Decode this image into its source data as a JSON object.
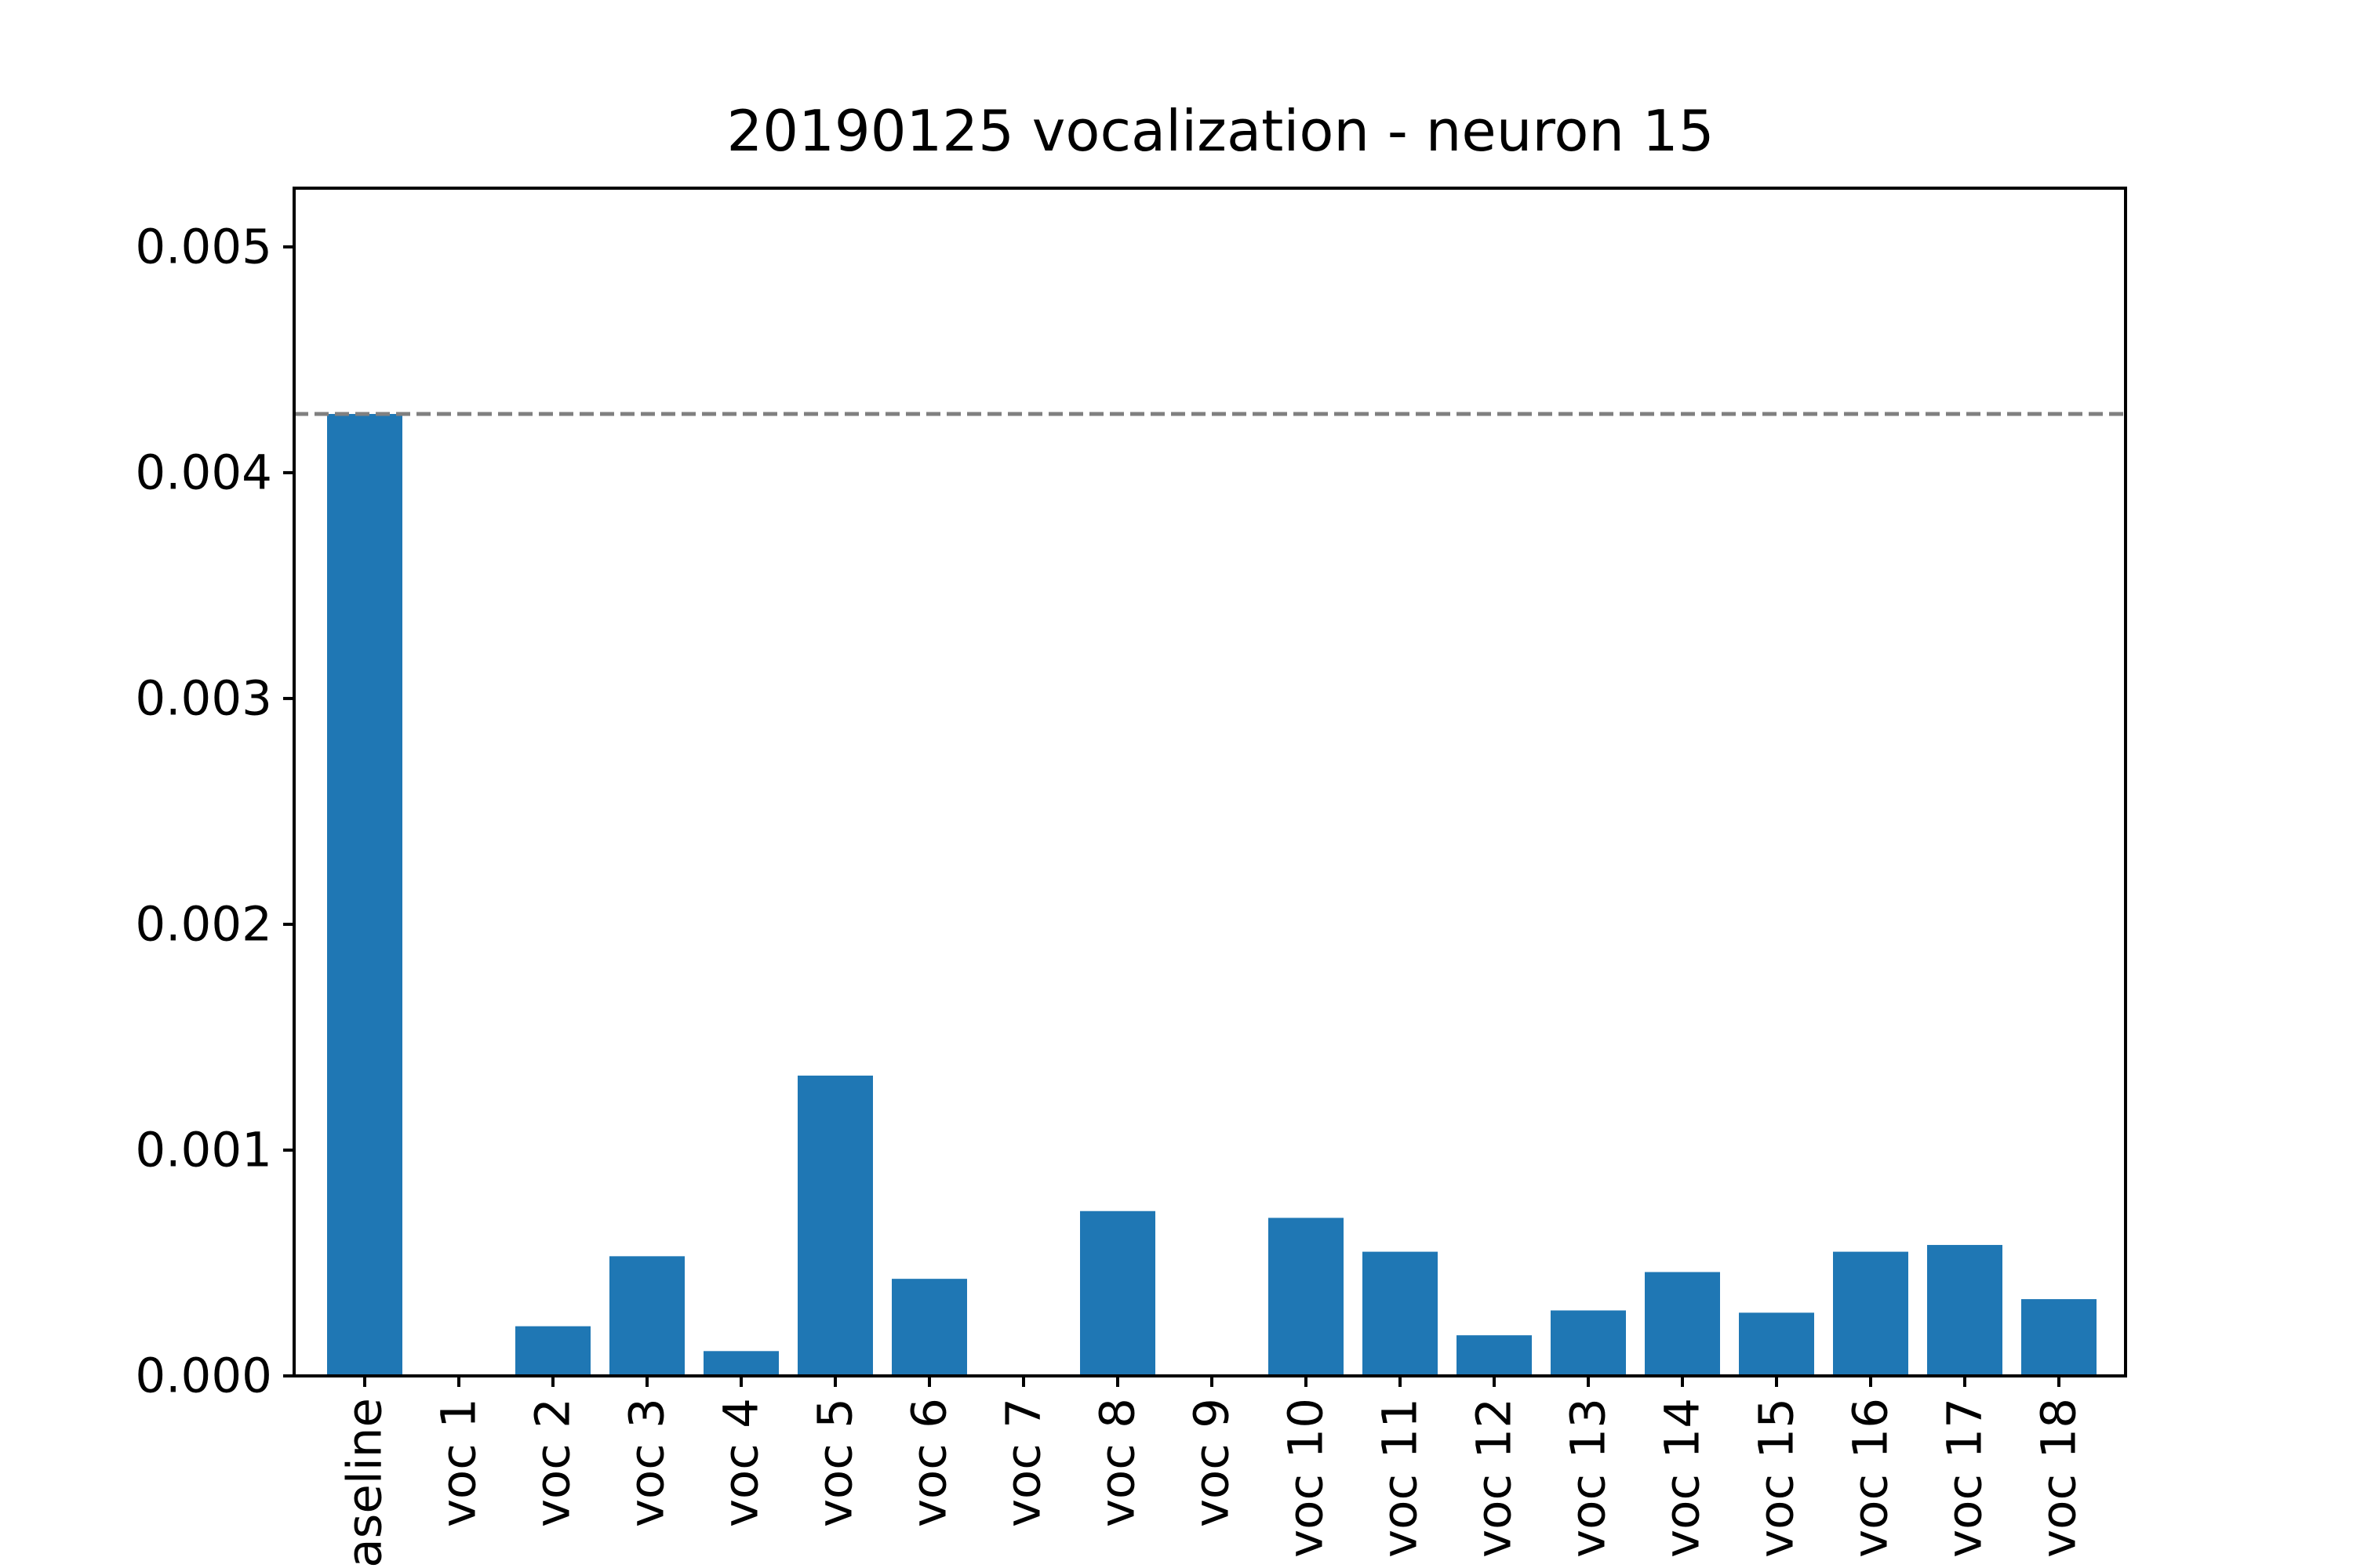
{
  "chart_data": {
    "type": "bar",
    "title": "20190125 vocalization - neuron 15",
    "xlabel": "",
    "ylabel": "",
    "categories": [
      "Baseline",
      "voc 1",
      "voc 2",
      "voc 3",
      "voc 4",
      "voc 5",
      "voc 6",
      "voc 7",
      "voc 8",
      "voc 9",
      "voc 10",
      "voc 11",
      "voc 12",
      "voc 13",
      "voc 14",
      "voc 15",
      "voc 16",
      "voc 17",
      "voc 18"
    ],
    "values": [
      0.00426,
      0.0,
      0.00022,
      0.00053,
      0.00011,
      0.00133,
      0.00043,
      0.0,
      0.00073,
      0.0,
      0.0007,
      0.00055,
      0.00018,
      0.00029,
      0.00046,
      0.00028,
      0.00055,
      0.00058,
      0.00034
    ],
    "ylim": [
      0,
      0.00526
    ],
    "yticks": [
      "0.000",
      "0.001",
      "0.002",
      "0.003",
      "0.004",
      "0.005"
    ],
    "reference_line": {
      "value": 0.00426,
      "style": "dashed",
      "color": "#808080"
    },
    "bar_color": "#1f77b4",
    "grid": false,
    "legend": "none"
  }
}
